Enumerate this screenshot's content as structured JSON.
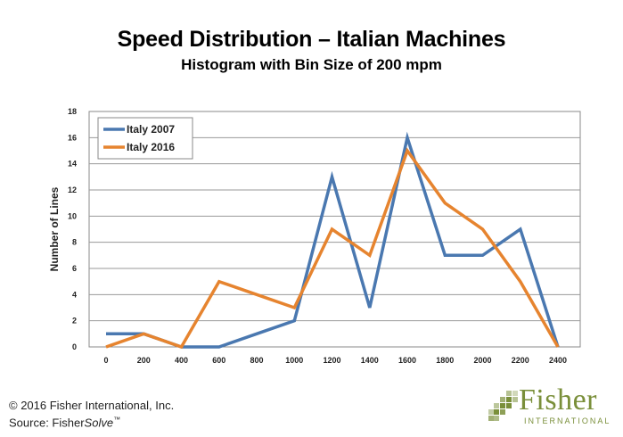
{
  "chart_data": {
    "type": "line",
    "title": "Speed Distribution – Italian Machines",
    "subtitle": "Histogram with Bin Size of 200 mpm",
    "ylabel": "Number of Lines",
    "xlabel": "",
    "categories": [
      "0",
      "200",
      "400",
      "600",
      "800",
      "1000",
      "1200",
      "1400",
      "1600",
      "1800",
      "2000",
      "2200",
      "2400"
    ],
    "yticks": [
      "0",
      "2",
      "4",
      "6",
      "8",
      "10",
      "12",
      "14",
      "16",
      "18"
    ],
    "ylim": [
      0,
      18
    ],
    "grid": true,
    "legend_position": "top-left",
    "series": [
      {
        "name": "Italy 2007",
        "color": "#4a78b0",
        "values": [
          1,
          1,
          0,
          0,
          1,
          2,
          13,
          3,
          16,
          7,
          7,
          9,
          0
        ]
      },
      {
        "name": "Italy 2016",
        "color": "#e6842f",
        "values": [
          0,
          1,
          0,
          5,
          4,
          3,
          9,
          7,
          15,
          11,
          9,
          5,
          0
        ]
      }
    ]
  },
  "footer": {
    "copyright": "© 2016 Fisher International, Inc.",
    "source_prefix": "Source: Fisher",
    "source_italic": "Solve",
    "source_tm": "™"
  },
  "logo": {
    "word": "Fisher",
    "sub": "INTERNATIONAL",
    "color": "#7a8f3a"
  }
}
